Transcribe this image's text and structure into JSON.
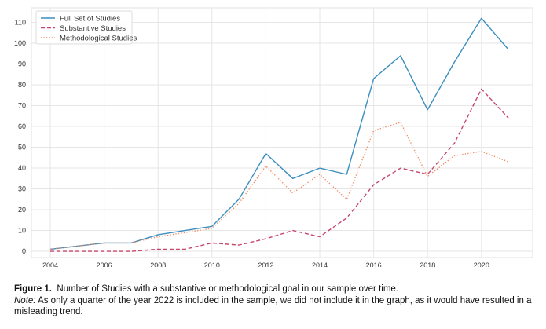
{
  "chart_data": {
    "type": "line",
    "title": "",
    "xlabel": "",
    "ylabel": "",
    "x": [
      2004,
      2005,
      2006,
      2007,
      2008,
      2009,
      2010,
      2011,
      2012,
      2013,
      2014,
      2015,
      2016,
      2017,
      2018,
      2019,
      2020,
      2021
    ],
    "xlim": [
      2003.3,
      2021.9
    ],
    "ylim": [
      -3,
      117
    ],
    "xticks": [
      2004,
      2006,
      2008,
      2010,
      2012,
      2014,
      2016,
      2018,
      2020
    ],
    "yticks": [
      0,
      10,
      20,
      30,
      40,
      50,
      60,
      70,
      80,
      90,
      100,
      110
    ],
    "grid": true,
    "legend_position": "top-left",
    "series": [
      {
        "name": "Full Set of Studies",
        "style": "solid",
        "color": "#3b8fc0",
        "values": [
          1,
          2.5,
          4,
          4,
          8,
          10,
          12,
          25,
          47,
          35,
          40,
          37,
          83,
          94,
          68,
          91,
          112,
          97
        ]
      },
      {
        "name": "Substantive Studies",
        "style": "dashed",
        "color": "#c7476a",
        "values": [
          0,
          0,
          0,
          0,
          1,
          1,
          4,
          3,
          6,
          10,
          7,
          16,
          32,
          40,
          37,
          52,
          78,
          64
        ]
      },
      {
        "name": "Methodological Studies",
        "style": "dotted",
        "color": "#ef8a62",
        "values": [
          1,
          2.5,
          4,
          4,
          7,
          9,
          11,
          23,
          41,
          28,
          37,
          25,
          58,
          62,
          36,
          46,
          48,
          43
        ]
      }
    ]
  },
  "caption": {
    "figure_label": "Figure 1.",
    "figure_text": "Number of Studies with a substantive or methodological goal in our sample over time.",
    "note_label": "Note:",
    "note_text": "As only a quarter of the year 2022 is included in the sample, we did not include it in the graph, as it would have resulted in a misleading trend."
  }
}
